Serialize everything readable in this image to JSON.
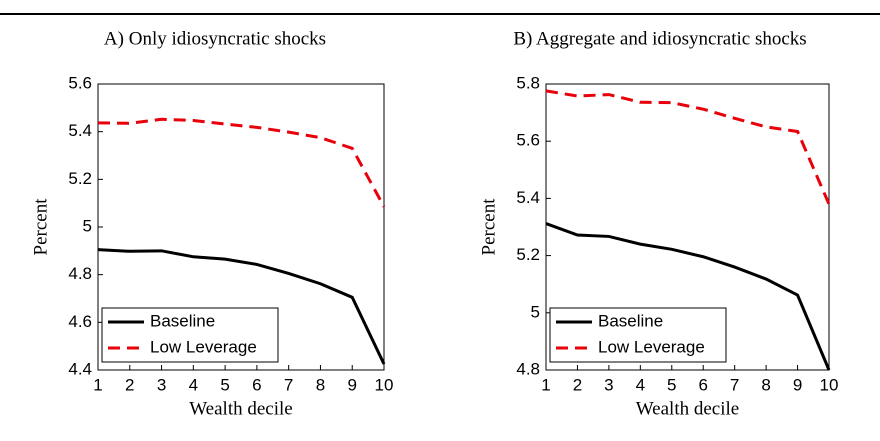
{
  "chart_data": [
    {
      "type": "line",
      "title": "A) Only idiosyncratic shocks",
      "xlabel": "Wealth decile",
      "ylabel": "Percent",
      "x": [
        1,
        2,
        3,
        4,
        5,
        6,
        7,
        8,
        9,
        10
      ],
      "series": [
        {
          "name": "Baseline",
          "color": "#000000",
          "dash": "solid",
          "values": [
            4.905,
            4.898,
            4.9,
            4.875,
            4.865,
            4.843,
            4.805,
            4.762,
            4.705,
            4.425
          ]
        },
        {
          "name": "Low Leverage",
          "color": "#e8000b",
          "dash": "dashed",
          "values": [
            5.437,
            5.435,
            5.452,
            5.447,
            5.432,
            5.418,
            5.398,
            5.375,
            5.33,
            5.085
          ]
        }
      ],
      "xlim": [
        1,
        10
      ],
      "ylim": [
        4.4,
        5.6
      ],
      "xticks": [
        1,
        2,
        3,
        4,
        5,
        6,
        7,
        8,
        9,
        10
      ],
      "yticks": [
        4.4,
        4.6,
        4.8,
        5,
        5.2,
        5.4,
        5.6
      ],
      "legend": "lower left"
    },
    {
      "type": "line",
      "title": "B) Aggregate and idiosyncratic shocks",
      "xlabel": "Wealth decile",
      "ylabel": "Percent",
      "x": [
        1,
        2,
        3,
        4,
        5,
        6,
        7,
        8,
        9,
        10
      ],
      "series": [
        {
          "name": "Baseline",
          "color": "#000000",
          "dash": "solid",
          "values": [
            5.312,
            5.272,
            5.267,
            5.24,
            5.222,
            5.196,
            5.16,
            5.118,
            5.062,
            4.8
          ]
        },
        {
          "name": "Low Leverage",
          "color": "#e8000b",
          "dash": "dashed",
          "values": [
            5.776,
            5.758,
            5.763,
            5.736,
            5.735,
            5.712,
            5.68,
            5.65,
            5.634,
            5.38
          ]
        }
      ],
      "xlim": [
        1,
        10
      ],
      "ylim": [
        4.8,
        5.8
      ],
      "xticks": [
        1,
        2,
        3,
        4,
        5,
        6,
        7,
        8,
        9,
        10
      ],
      "yticks": [
        4.8,
        5,
        5.2,
        5.4,
        5.6,
        5.8
      ],
      "legend": "lower left"
    }
  ]
}
